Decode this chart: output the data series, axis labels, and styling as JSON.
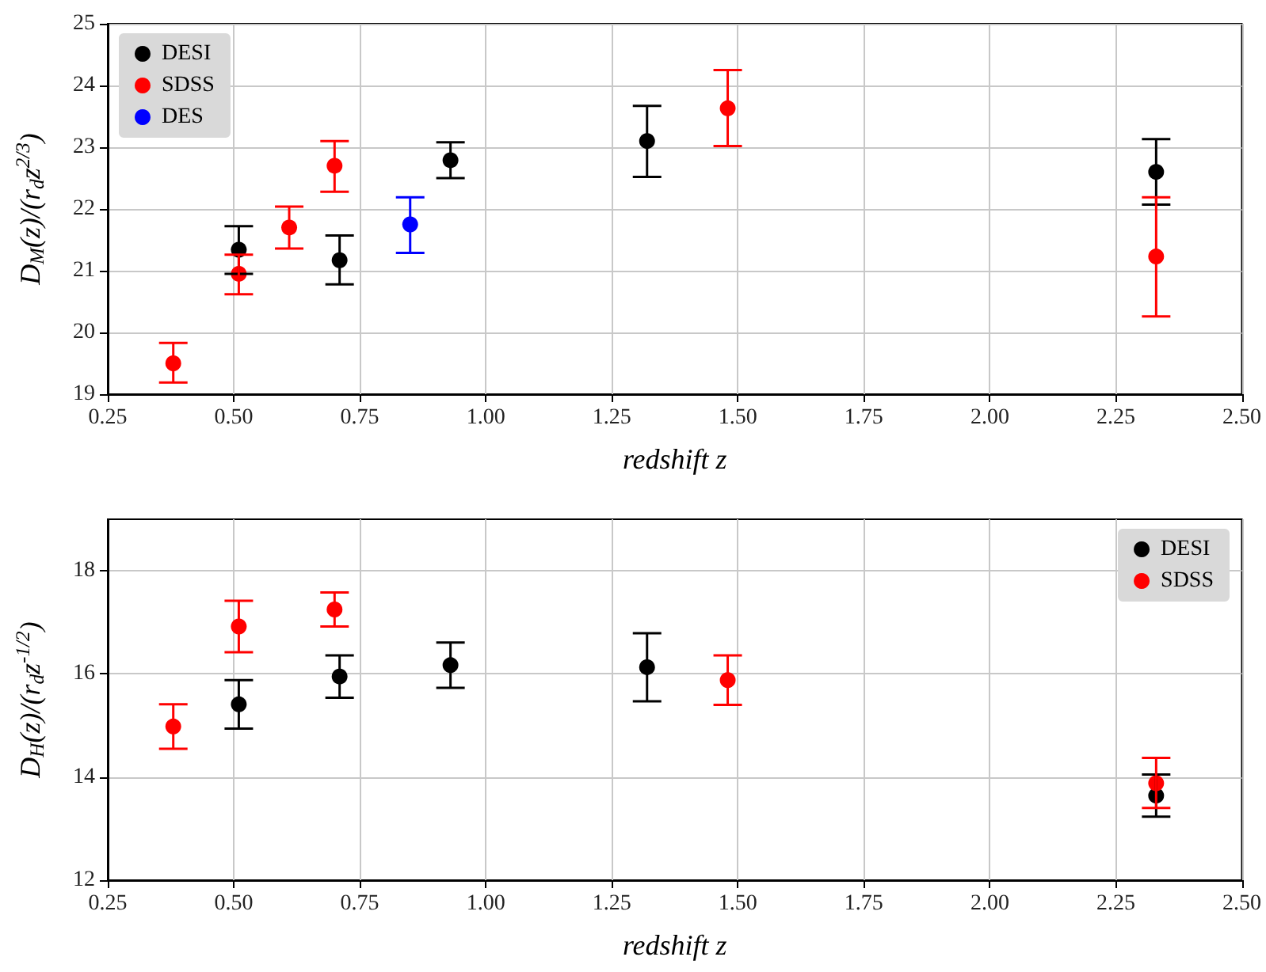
{
  "chart_data": [
    {
      "type": "scatter",
      "xlabel": "redshift z",
      "ylabel": "D$_{M}$(z)/(r$_{d}$z$^{2/3}$)",
      "xlim": [
        0.25,
        2.5
      ],
      "xticks": [
        {
          "value": 0.25,
          "label": "0.25"
        },
        {
          "value": 0.5,
          "label": "0.50"
        },
        {
          "value": 0.75,
          "label": "0.75"
        },
        {
          "value": 1,
          "label": "1.00"
        },
        {
          "value": 1.25,
          "label": "1.25"
        },
        {
          "value": 1.5,
          "label": "1.50"
        },
        {
          "value": 1.75,
          "label": "1.75"
        },
        {
          "value": 2,
          "label": "2.00"
        },
        {
          "value": 2.25,
          "label": "2.25"
        },
        {
          "value": 2.5,
          "label": "2.50"
        }
      ],
      "ylim": [
        19,
        25
      ],
      "yticks": [
        19,
        20,
        21,
        22,
        23,
        24,
        25
      ],
      "grid": true,
      "legend": "top left",
      "marker": "circle",
      "series": [
        {
          "name": "DESI",
          "color": "#000000",
          "x": [
            0.51,
            0.71,
            0.93,
            1.32,
            2.33
          ],
          "values": [
            21.34,
            21.17,
            22.79,
            23.1,
            22.6
          ],
          "errors": [
            [
              20.95,
              21.72
            ],
            [
              20.78,
              21.57
            ],
            [
              22.5,
              23.08
            ],
            [
              22.52,
              23.67
            ],
            [
              22.07,
              23.13
            ]
          ]
        },
        {
          "name": "SDSS",
          "color": "#ff0000",
          "x": [
            0.38,
            0.51,
            0.61,
            0.7,
            1.48,
            2.33
          ],
          "values": [
            19.5,
            20.95,
            21.7,
            22.7,
            23.63,
            21.23
          ],
          "errors": [
            [
              19.19,
              19.83
            ],
            [
              20.62,
              21.26
            ],
            [
              21.36,
              22.04
            ],
            [
              22.28,
              23.1
            ],
            [
              23.02,
              24.25
            ],
            [
              20.26,
              22.19
            ]
          ]
        },
        {
          "name": "DES",
          "color": "#0000ff",
          "x": [
            0.85
          ],
          "values": [
            21.75
          ],
          "errors": [
            [
              21.29,
              22.19
            ]
          ]
        }
      ]
    },
    {
      "type": "scatter",
      "xlabel": "redshift z",
      "ylabel": "D$_{H}$(z)/(r$_{d}$z$^{-1/2}$)",
      "xlim": [
        0.25,
        2.5
      ],
      "xticks": [
        {
          "value": 0.25,
          "label": "0.25"
        },
        {
          "value": 0.5,
          "label": "0.50"
        },
        {
          "value": 0.75,
          "label": "0.75"
        },
        {
          "value": 1,
          "label": "1.00"
        },
        {
          "value": 1.25,
          "label": "1.25"
        },
        {
          "value": 1.5,
          "label": "1.50"
        },
        {
          "value": 1.75,
          "label": "1.75"
        },
        {
          "value": 2,
          "label": "2.00"
        },
        {
          "value": 2.25,
          "label": "2.25"
        },
        {
          "value": 2.5,
          "label": "2.50"
        }
      ],
      "ylim": [
        12,
        19
      ],
      "yticks": [
        12,
        14,
        16,
        18
      ],
      "grid": true,
      "legend": "top right",
      "marker": "circle",
      "series": [
        {
          "name": "DESI",
          "color": "#000000",
          "x": [
            0.51,
            0.71,
            0.93,
            1.32,
            2.33
          ],
          "values": [
            15.41,
            15.95,
            16.17,
            16.13,
            13.64
          ],
          "errors": [
            [
              14.94,
              15.88
            ],
            [
              15.54,
              16.36
            ],
            [
              15.73,
              16.61
            ],
            [
              15.47,
              16.79
            ],
            [
              13.23,
              14.05
            ]
          ]
        },
        {
          "name": "SDSS",
          "color": "#ff0000",
          "x": [
            0.38,
            0.51,
            0.7,
            1.48,
            2.33
          ],
          "values": [
            14.98,
            16.92,
            17.25,
            15.88,
            13.88
          ],
          "errors": [
            [
              14.55,
              15.41
            ],
            [
              16.42,
              17.42
            ],
            [
              16.92,
              17.58
            ],
            [
              15.4,
              16.36
            ],
            [
              13.4,
              14.37
            ]
          ]
        }
      ]
    }
  ]
}
